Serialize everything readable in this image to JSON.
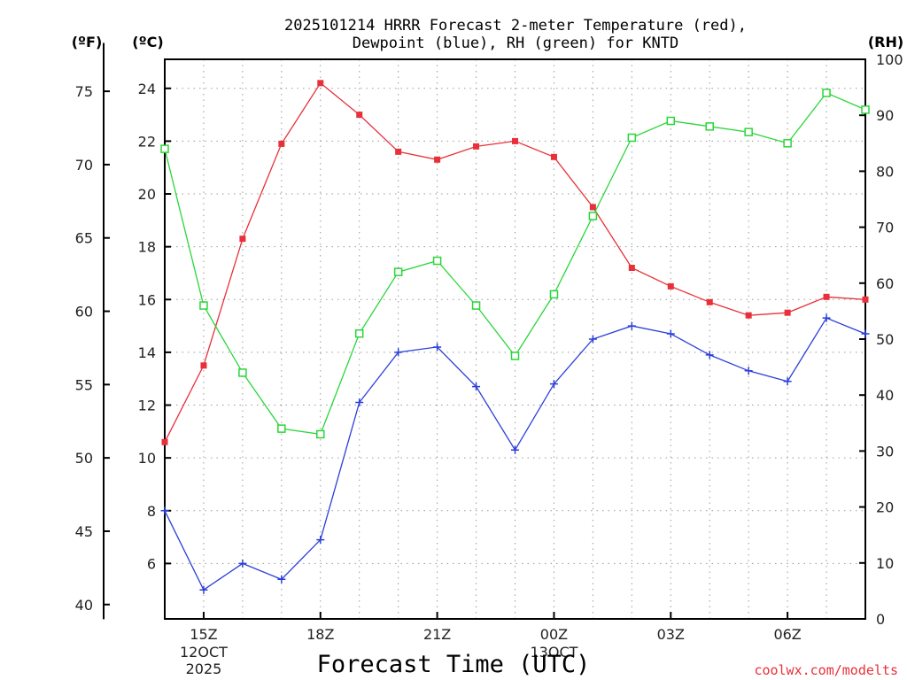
{
  "chart_data": {
    "type": "line",
    "title": "2025101214 HRRR Forecast 2-meter Temperature (red),",
    "subtitle": "Dewpoint (blue), RH (green) for KNTD",
    "xlabel": "Forecast Time (UTC)",
    "credit": "coolwx.com/modelts",
    "units": {
      "fahrenheit": "(ºF)",
      "celsius": "(ºC)",
      "rh": "(RH)"
    },
    "x": [
      14,
      15,
      16,
      17,
      18,
      19,
      20,
      21,
      22,
      23,
      24,
      25,
      26,
      27,
      28,
      29,
      30,
      31,
      32
    ],
    "xlim": [
      14,
      32
    ],
    "x_ticks": [
      {
        "x": 15,
        "label": "15Z",
        "sub1": "12OCT",
        "sub2": "2025"
      },
      {
        "x": 18,
        "label": "18Z",
        "sub1": "",
        "sub2": ""
      },
      {
        "x": 21,
        "label": "21Z",
        "sub1": "",
        "sub2": ""
      },
      {
        "x": 24,
        "label": "00Z",
        "sub1": "13OCT",
        "sub2": ""
      },
      {
        "x": 27,
        "label": "03Z",
        "sub1": "",
        "sub2": ""
      },
      {
        "x": 30,
        "label": "06Z",
        "sub1": "",
        "sub2": ""
      }
    ],
    "celsius_axis": {
      "ylim": [
        3.9,
        25.1
      ],
      "ticks": [
        6,
        8,
        10,
        12,
        14,
        16,
        18,
        20,
        22,
        24
      ]
    },
    "fahrenheit_ticks": [
      40,
      45,
      50,
      55,
      60,
      65,
      70,
      75
    ],
    "rh_axis": {
      "ylim": [
        0,
        100
      ],
      "ticks": [
        0,
        10,
        20,
        30,
        40,
        50,
        60,
        70,
        80,
        90,
        100
      ]
    },
    "series": [
      {
        "name": "Temperature",
        "axis": "celsius",
        "color": "#e8303a",
        "marker": "filled-square",
        "values": [
          10.6,
          13.5,
          18.3,
          21.9,
          24.2,
          23.0,
          21.6,
          21.3,
          21.8,
          22.0,
          21.4,
          19.5,
          17.2,
          16.5,
          15.9,
          15.4,
          15.5,
          16.1,
          16.0
        ]
      },
      {
        "name": "Dewpoint",
        "axis": "celsius",
        "color": "#2b3fd8",
        "marker": "plus",
        "values": [
          8.0,
          5.0,
          6.0,
          5.4,
          6.9,
          12.1,
          14.0,
          14.2,
          12.7,
          10.3,
          12.8,
          14.5,
          15.0,
          14.7,
          13.9,
          13.3,
          12.9,
          15.3,
          14.7
        ]
      },
      {
        "name": "RH",
        "axis": "rh",
        "color": "#2ad63a",
        "marker": "open-square",
        "values": [
          84,
          56,
          44,
          34,
          33,
          51,
          62,
          64,
          56,
          47,
          58,
          72,
          86,
          89,
          88,
          87,
          85,
          94,
          91
        ]
      }
    ]
  }
}
